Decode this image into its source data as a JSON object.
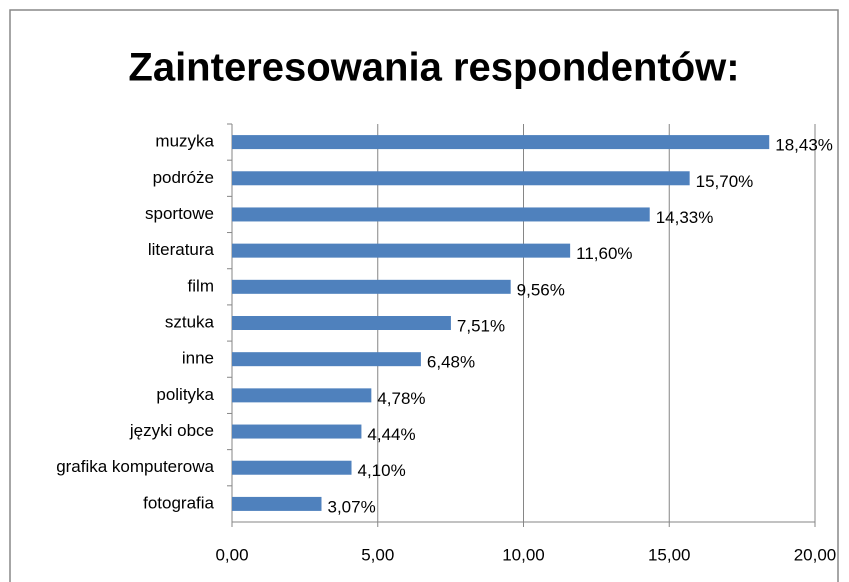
{
  "chart_data": {
    "type": "bar",
    "orientation": "horizontal",
    "title": "Zainteresowania respondentów:",
    "categories": [
      "muzyka",
      "podróże",
      "sportowe",
      "literatura",
      "film",
      "sztuka",
      "inne",
      "polityka",
      "języki obce",
      "grafika komputerowa",
      "fotografia"
    ],
    "values": [
      18.43,
      15.7,
      14.33,
      11.6,
      9.56,
      7.51,
      6.48,
      4.78,
      4.44,
      4.1,
      3.07
    ],
    "value_labels": [
      "18,43%",
      "15,70%",
      "14,33%",
      "11,60%",
      "9,56%",
      "7,51%",
      "6,48%",
      "4,78%",
      "4,44%",
      "4,10%",
      "3,07%"
    ],
    "color": "#4f81bd",
    "xlim": [
      0,
      20
    ],
    "xticks": [
      {
        "value": 0,
        "label": "0,00"
      },
      {
        "value": 5,
        "label": "5,00"
      },
      {
        "value": 10,
        "label": "10,00"
      },
      {
        "value": 15,
        "label": "15,00"
      },
      {
        "value": 20,
        "label": "20,00"
      }
    ],
    "grid": true
  }
}
